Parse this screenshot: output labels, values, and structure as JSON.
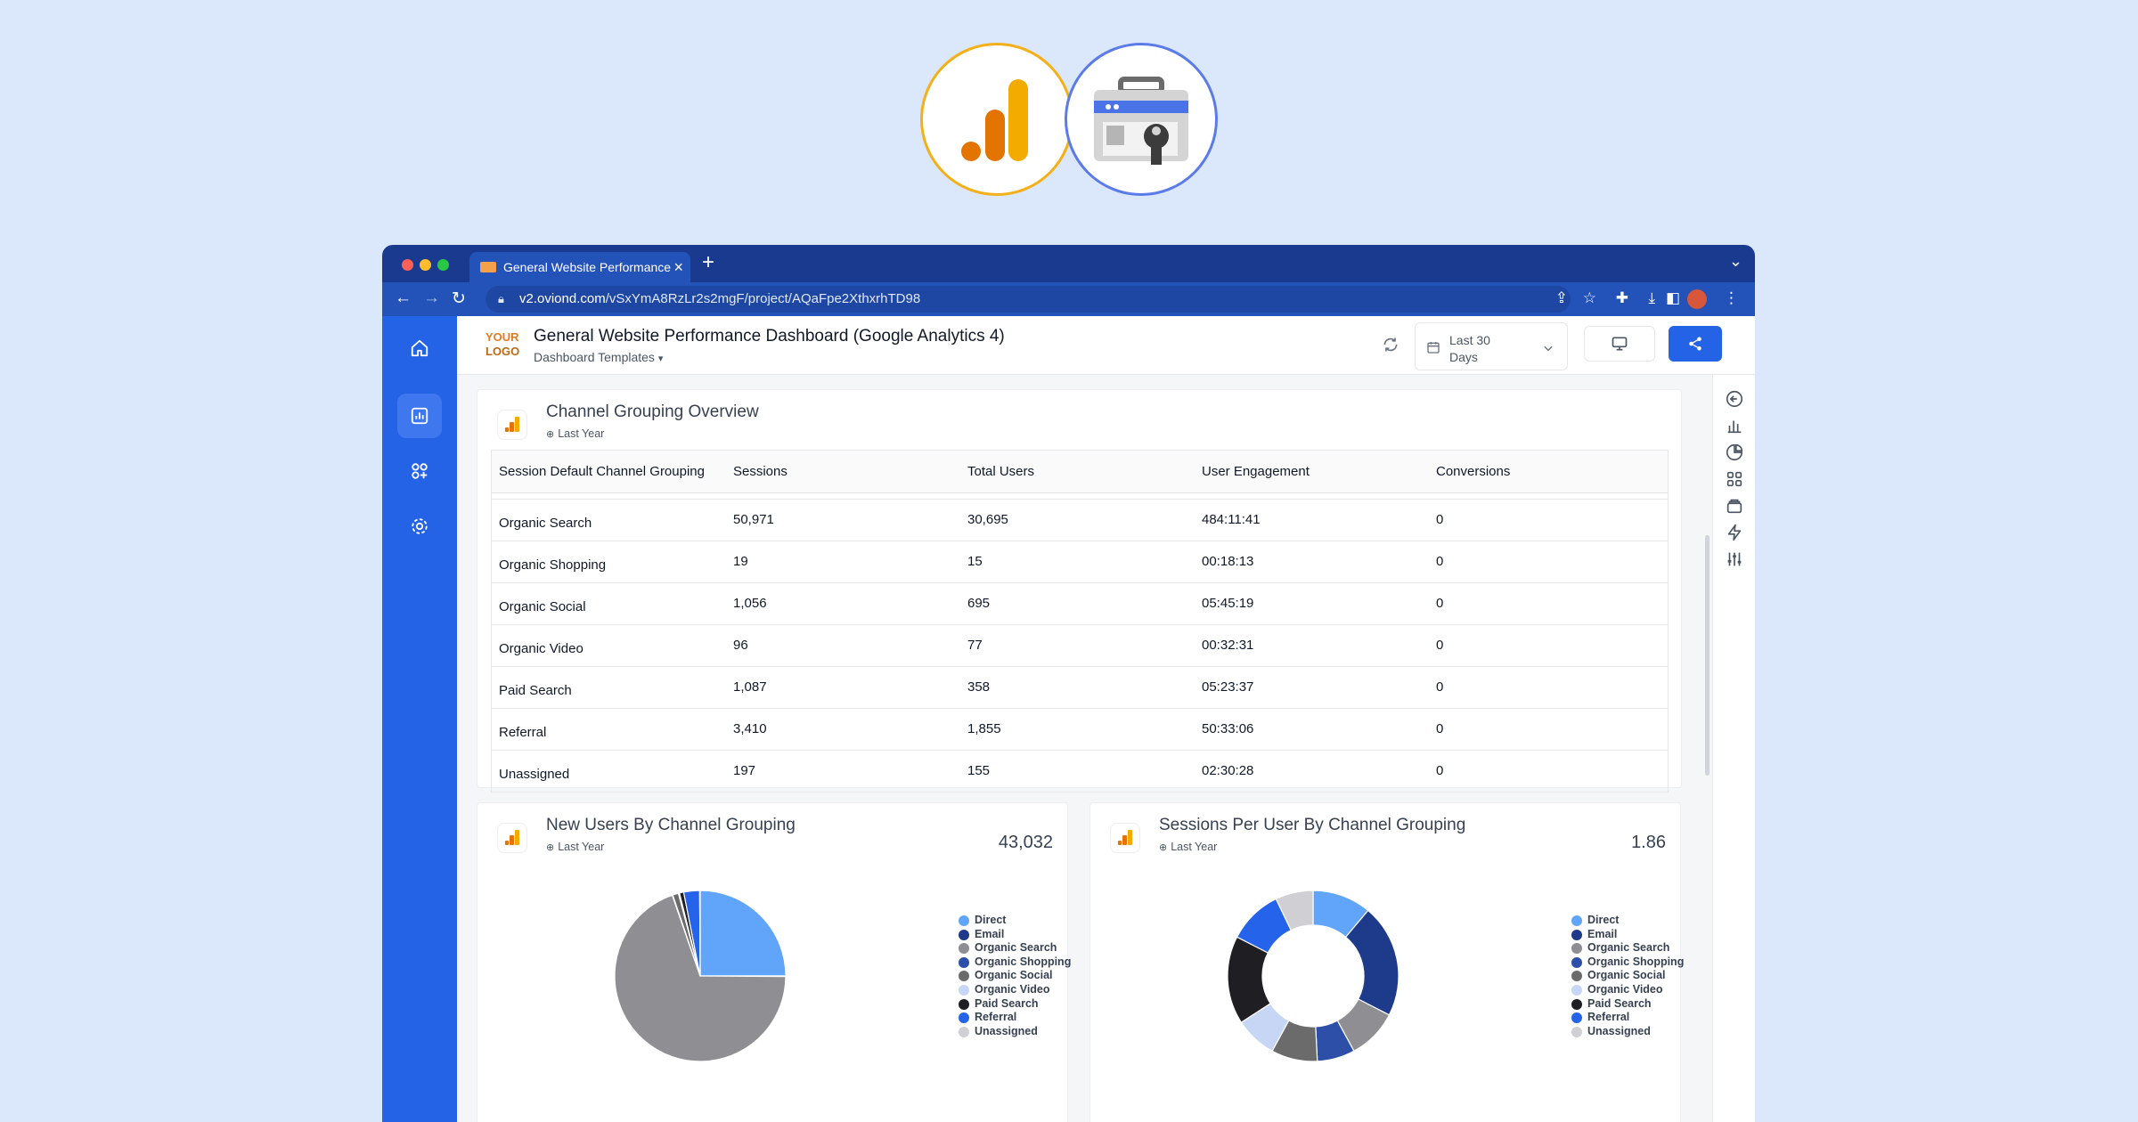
{
  "colors": {
    "brand": "#2462e6",
    "bg": "#dbe8fc",
    "chrome": "#1a3a8f"
  },
  "top_logos": [
    "google-analytics-logo",
    "google-search-console-logo"
  ],
  "browser": {
    "tab_title": "General Website Performance",
    "url_host": "v2.oviond.com",
    "url_path": "/vSxYmA8RzLr2s2mgF/project/AQaFpe2XthxrhTD98"
  },
  "header": {
    "brand_line1": "YOUR",
    "brand_line2": "LOGO",
    "title": "General Website Performance Dashboard (Google Analytics 4)",
    "subtitle": "Dashboard Templates",
    "date_line1": "Last 30",
    "date_line2": "Days"
  },
  "table_card": {
    "title": "Channel Grouping Overview",
    "period": "Last Year",
    "columns": [
      "Session Default Channel Grouping",
      "Sessions",
      "Total Users",
      "User Engagement",
      "Conversions"
    ],
    "rows": [
      [
        "Organic Search",
        "50,971",
        "30,695",
        "484:11:41",
        "0"
      ],
      [
        "Organic Shopping",
        "19",
        "15",
        "00:18:13",
        "0"
      ],
      [
        "Organic Social",
        "1,056",
        "695",
        "05:45:19",
        "0"
      ],
      [
        "Organic Video",
        "96",
        "77",
        "00:32:31",
        "0"
      ],
      [
        "Paid Search",
        "1,087",
        "358",
        "05:23:37",
        "0"
      ],
      [
        "Referral",
        "3,410",
        "1,855",
        "50:33:06",
        "0"
      ],
      [
        "Unassigned",
        "197",
        "155",
        "02:30:28",
        "0"
      ]
    ]
  },
  "new_users_card": {
    "title": "New Users By Channel Grouping",
    "period": "Last Year",
    "total": "43,032"
  },
  "sessions_card": {
    "title": "Sessions Per User By Channel Grouping",
    "period": "Last Year",
    "total": "1.86"
  },
  "legend_labels": [
    "Direct",
    "Email",
    "Organic Search",
    "Organic Shopping",
    "Organic Social",
    "Organic Video",
    "Paid Search",
    "Referral",
    "Unassigned"
  ],
  "chart_data": [
    {
      "type": "pie",
      "title": "New Users By Channel Grouping",
      "categories": [
        "Direct",
        "Email",
        "Organic Search",
        "Organic Shopping",
        "Organic Social",
        "Organic Video",
        "Paid Search",
        "Referral",
        "Unassigned"
      ],
      "values": [
        25.0,
        0.1,
        69.6,
        0.1,
        1.1,
        0.2,
        0.8,
        3.0,
        0.1
      ],
      "colors": [
        "#60a5fa",
        "#1e3a8a",
        "#8e8e93",
        "#2d4fa8",
        "#6b6b6b",
        "#c7d6f5",
        "#1f1f23",
        "#2563eb",
        "#cfcfd4"
      ],
      "legend": "right"
    },
    {
      "type": "pie",
      "title": "Sessions Per User By Channel Grouping",
      "categories": [
        "Direct",
        "Email",
        "Organic Search",
        "Organic Shopping",
        "Organic Social",
        "Organic Video",
        "Paid Search",
        "Referral",
        "Unassigned"
      ],
      "values": [
        1.4,
        2.7,
        1.2,
        0.9,
        1.1,
        1.0,
        2.1,
        1.3,
        0.9
      ],
      "colors": [
        "#60a5fa",
        "#1e3a8a",
        "#8e8e93",
        "#2d4fa8",
        "#6b6b6b",
        "#c7d6f5",
        "#1f1f23",
        "#2563eb",
        "#cfcfd4"
      ],
      "donut": true,
      "legend": "right"
    }
  ]
}
